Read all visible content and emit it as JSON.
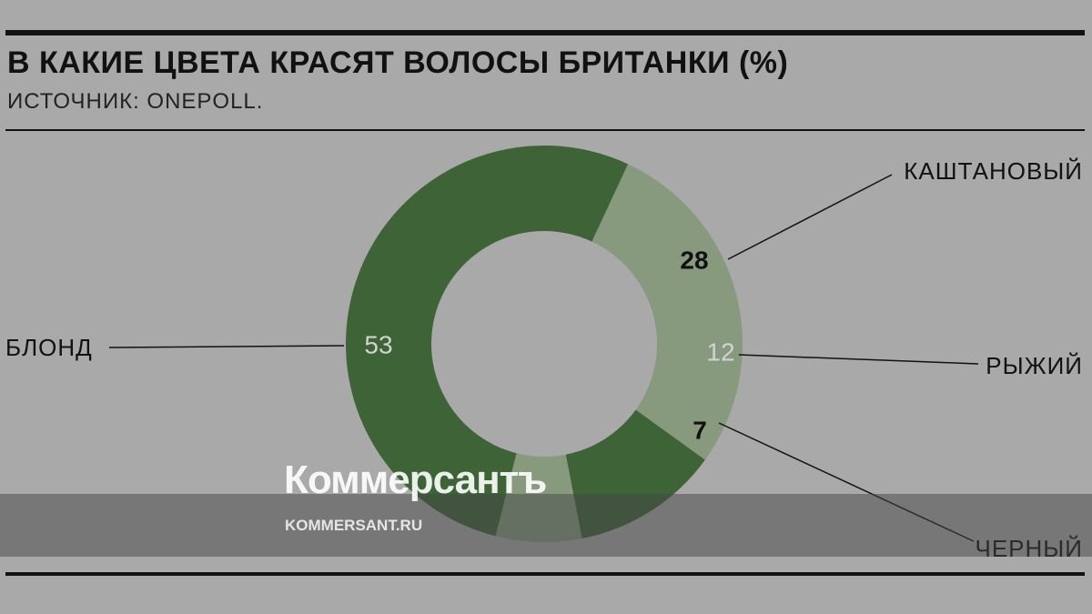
{
  "title": "В КАКИЕ ЦВЕТА КРАСЯТ ВОЛОСЫ БРИТАНКИ (%)",
  "subtitle": "ИСТОЧНИК: ONEPOLL.",
  "watermark": {
    "logo": "Коммерсантъ",
    "url": "KOMMERSANT.RU"
  },
  "colors": {
    "background": "#a9a9a9",
    "dark_green": "#3d6337",
    "light_green": "#879a7e",
    "text": "#111111"
  },
  "chart_data": {
    "type": "pie",
    "donut": true,
    "unit": "%",
    "slices": [
      {
        "label": "КАШТАНОВЫЙ",
        "value": 28,
        "color": "#879a7e",
        "value_color": "#111111"
      },
      {
        "label": "РЫЖИЙ",
        "value": 12,
        "color": "#3d6337",
        "value_color": "#d2d2d2"
      },
      {
        "label": "ЧЕРНЫЙ",
        "value": 7,
        "color": "#879a7e",
        "value_color": "#111111"
      },
      {
        "label": "БЛОНД",
        "value": 53,
        "color": "#3d6337",
        "value_color": "#d2d2d2"
      }
    ]
  }
}
